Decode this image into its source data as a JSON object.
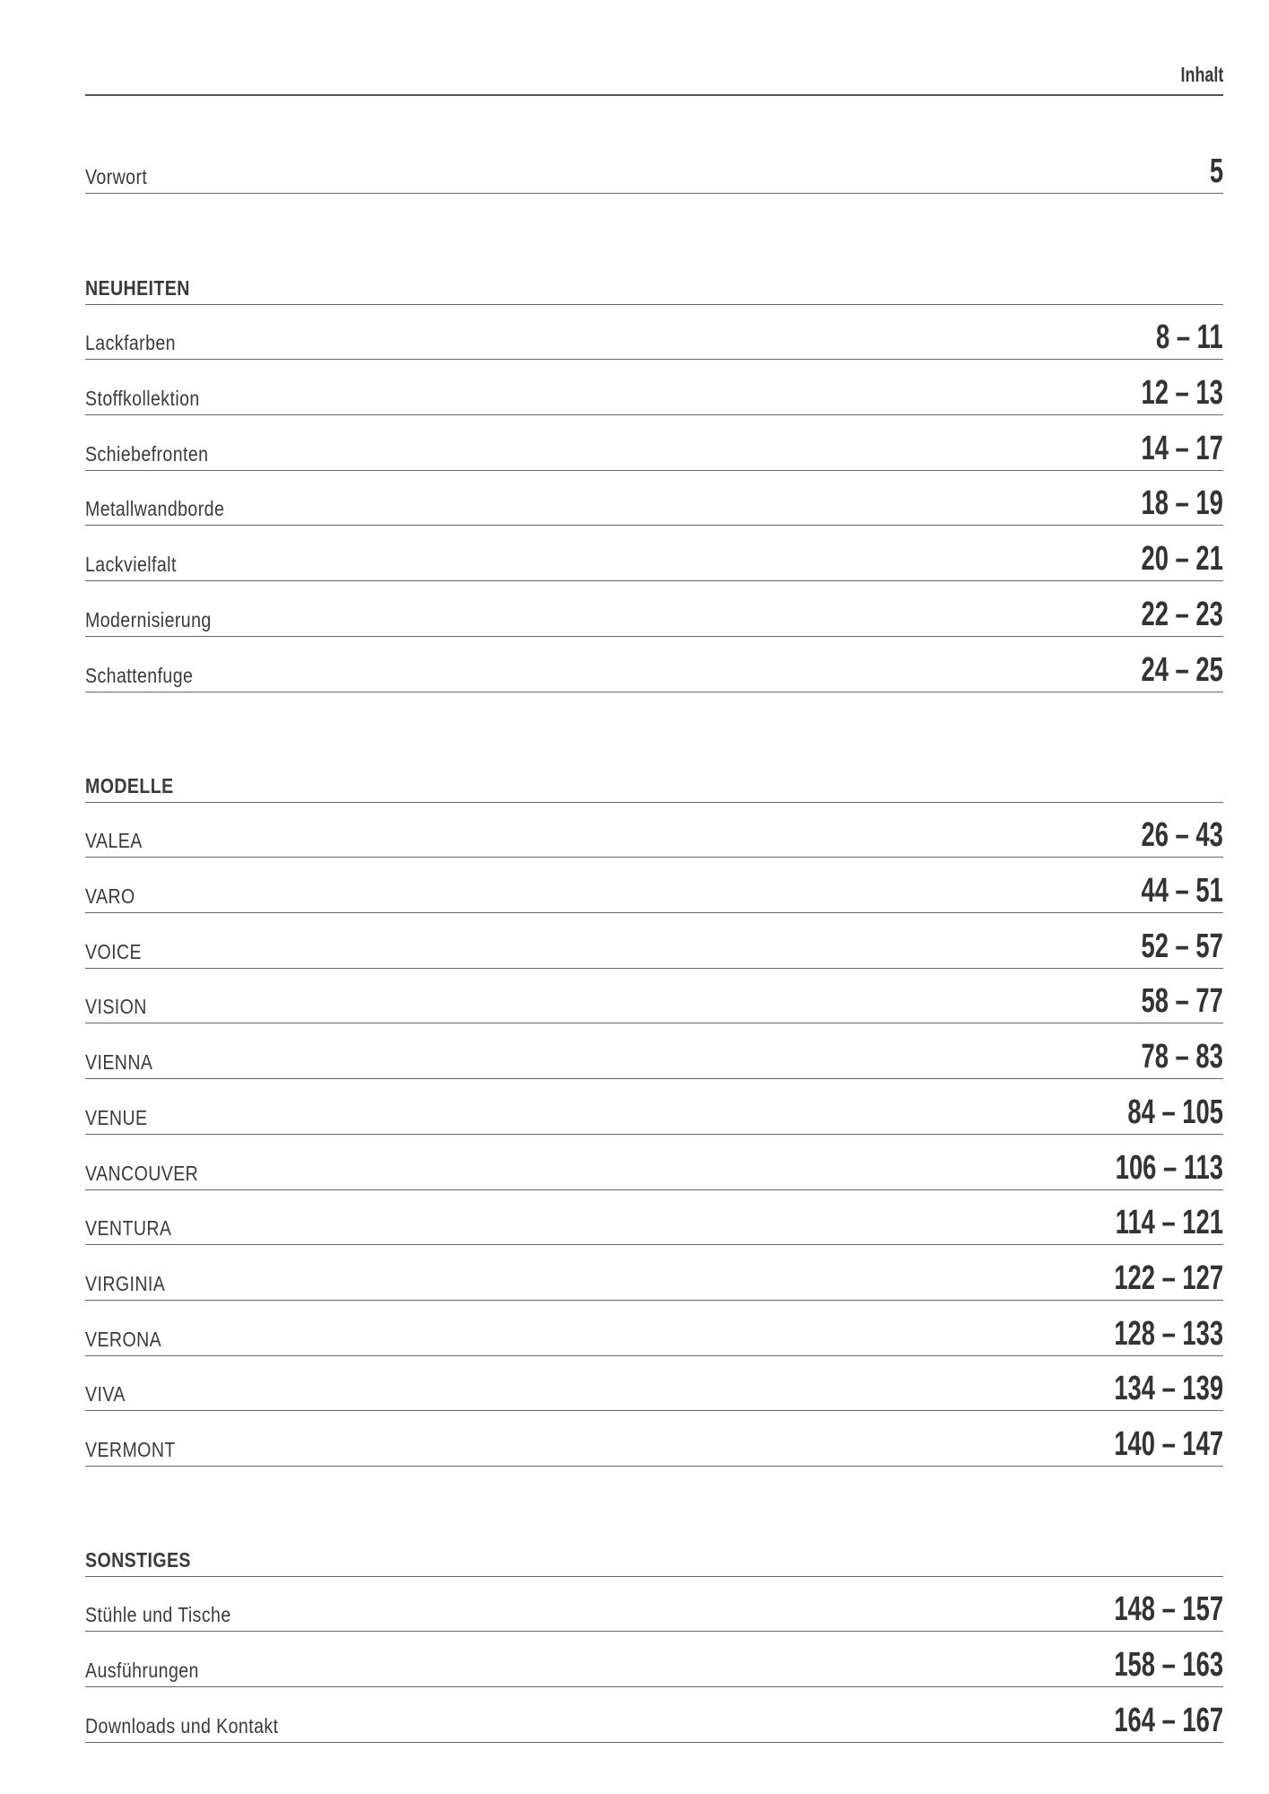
{
  "header": {
    "title": "Inhalt"
  },
  "intro": {
    "label": "Vorwort",
    "pages": "5"
  },
  "sections": [
    {
      "title": "NEUHEITEN",
      "items": [
        {
          "label": "Lackfarben",
          "pages": "8 – 11"
        },
        {
          "label": "Stoffkollektion",
          "pages": "12 – 13"
        },
        {
          "label": "Schiebefronten",
          "pages": "14 – 17"
        },
        {
          "label": "Metallwandborde",
          "pages": "18 – 19"
        },
        {
          "label": "Lackvielfalt",
          "pages": "20 – 21"
        },
        {
          "label": "Modernisierung",
          "pages": "22 – 23"
        },
        {
          "label": "Schattenfuge",
          "pages": "24 – 25"
        }
      ]
    },
    {
      "title": "MODELLE",
      "items": [
        {
          "label": "VALEA",
          "pages": "26 – 43"
        },
        {
          "label": "VARO",
          "pages": "44 – 51"
        },
        {
          "label": "VOICE",
          "pages": "52 – 57"
        },
        {
          "label": "VISION",
          "pages": "58 – 77"
        },
        {
          "label": "VIENNA",
          "pages": "78 – 83"
        },
        {
          "label": "VENUE",
          "pages": "84 – 105"
        },
        {
          "label": "VANCOUVER",
          "pages": "106 – 113"
        },
        {
          "label": "VENTURA",
          "pages": "114 – 121"
        },
        {
          "label": "VIRGINIA",
          "pages": "122 – 127"
        },
        {
          "label": "VERONA",
          "pages": "128 – 133"
        },
        {
          "label": "VIVA",
          "pages": "134 – 139"
        },
        {
          "label": "VERMONT",
          "pages": "140 – 147"
        }
      ]
    },
    {
      "title": "SONSTIGES",
      "items": [
        {
          "label": "Stühle und Tische",
          "pages": "148 – 157"
        },
        {
          "label": "Ausführungen",
          "pages": "158 – 163"
        },
        {
          "label": "Downloads und Kontakt",
          "pages": "164 – 167"
        }
      ]
    }
  ]
}
